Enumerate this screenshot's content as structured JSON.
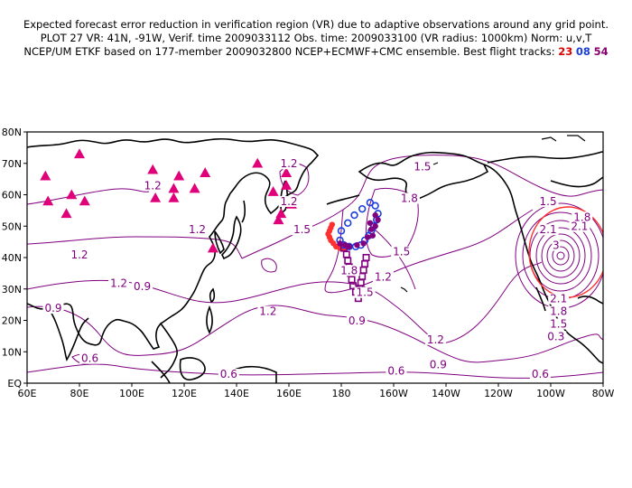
{
  "header": {
    "line1": "Expected forecast error reduction in verification region (VR) due to adaptive observations around any grid point.",
    "line2": "PLOT 27 VR: 41N, -91W, Verif. time 2009033112 Obs. time: 2009033100 (VR radius: 1000km) Norm: u,v,T",
    "line3_text": "NCEP/UM ETKF based on 177-member 2009032800 NCEP+ECMWF+CMC ensemble. Best flight tracks:",
    "track_ids": [
      "23",
      "08",
      "54"
    ]
  },
  "map": {
    "lon_range": [
      60,
      280
    ],
    "lat_range": [
      0,
      80
    ],
    "lon_ticks": [
      "60E",
      "80E",
      "100E",
      "120E",
      "140E",
      "160E",
      "180",
      "160W",
      "140W",
      "120W",
      "100W",
      "80W"
    ],
    "lat_ticks": [
      "EQ",
      "10N",
      "20N",
      "30N",
      "40N",
      "50N",
      "60N",
      "70N",
      "80N"
    ],
    "contour_color": "#800080",
    "verification_region": {
      "center_lat": 41,
      "center_lon": 269,
      "radius_km": 1000,
      "color": "#ff3030"
    },
    "contour_labels": [
      {
        "text": "1.2",
        "lon": 108,
        "lat": 62
      },
      {
        "text": "1.2",
        "lon": 125,
        "lat": 48
      },
      {
        "text": "1.2",
        "lon": 160,
        "lat": 69
      },
      {
        "text": "1.2",
        "lon": 160,
        "lat": 57
      },
      {
        "text": "1.2",
        "lon": 80,
        "lat": 40
      },
      {
        "text": "1.2",
        "lon": 95,
        "lat": 31
      },
      {
        "text": "1.2",
        "lon": 152,
        "lat": 22
      },
      {
        "text": "1.2",
        "lon": 196,
        "lat": 33
      },
      {
        "text": "1.2",
        "lon": 216,
        "lat": 13
      },
      {
        "text": "0.9",
        "lon": 104,
        "lat": 30
      },
      {
        "text": "0.9",
        "lon": 70,
        "lat": 23
      },
      {
        "text": "0.9",
        "lon": 186,
        "lat": 19
      },
      {
        "text": "0.9",
        "lon": 217,
        "lat": 5
      },
      {
        "text": "0.6",
        "lon": 84,
        "lat": 7
      },
      {
        "text": "0.6",
        "lon": 137,
        "lat": 2
      },
      {
        "text": "0.6",
        "lon": 201,
        "lat": 3
      },
      {
        "text": "0.6",
        "lon": 256,
        "lat": 2
      },
      {
        "text": "0.3",
        "lon": 262,
        "lat": 14
      },
      {
        "text": "1.5",
        "lon": 165,
        "lat": 48
      },
      {
        "text": "1.5",
        "lon": 189,
        "lat": 28
      },
      {
        "text": "1.5",
        "lon": 203,
        "lat": 41
      },
      {
        "text": "1.5",
        "lon": 211,
        "lat": 68
      },
      {
        "text": "1.5",
        "lon": 259,
        "lat": 57
      },
      {
        "text": "1.8",
        "lon": 206,
        "lat": 58
      },
      {
        "text": "1.8",
        "lon": 183,
        "lat": 35
      },
      {
        "text": "1.8",
        "lon": 272,
        "lat": 52
      },
      {
        "text": "2.1",
        "lon": 259,
        "lat": 48
      },
      {
        "text": "2.1",
        "lon": 271,
        "lat": 49
      },
      {
        "text": "2.1",
        "lon": 263,
        "lat": 26
      },
      {
        "text": "1.8",
        "lon": 263,
        "lat": 22
      },
      {
        "text": "1.5",
        "lon": 263,
        "lat": 18
      },
      {
        "text": "3",
        "lon": 262,
        "lat": 43
      }
    ],
    "raob_triangles": [
      [
        67,
        66
      ],
      [
        68,
        58
      ],
      [
        75,
        54
      ],
      [
        77,
        60
      ],
      [
        80,
        73
      ],
      [
        82,
        58
      ],
      [
        108,
        68
      ],
      [
        109,
        63
      ],
      [
        109,
        59
      ],
      [
        116,
        59
      ],
      [
        116,
        62
      ],
      [
        118,
        66
      ],
      [
        124,
        62
      ],
      [
        128,
        67
      ],
      [
        131,
        43
      ],
      [
        148,
        70
      ],
      [
        154,
        61
      ],
      [
        156,
        52
      ],
      [
        157,
        54
      ],
      [
        159,
        63
      ],
      [
        159,
        67
      ],
      [
        161,
        57
      ]
    ]
  },
  "chart_data": {
    "type": "scatter",
    "title": "Expected forecast error reduction in verification region (VR) due to adaptive observations around any grid point.",
    "series": [
      {
        "name": "23",
        "color": "#ff3030",
        "marker": "filled-circle",
        "points": [
          [
            176.5,
            50.5
          ],
          [
            176,
            49.5
          ],
          [
            175.5,
            48.5
          ],
          [
            175,
            47.5
          ],
          [
            175.5,
            46.5
          ],
          [
            176,
            45.5
          ],
          [
            177,
            44.5
          ],
          [
            178,
            43.5
          ],
          [
            179.5,
            43
          ],
          [
            181,
            43
          ]
        ]
      },
      {
        "name": "08",
        "color": "#1a3de0",
        "marker": "open-circle",
        "points": [
          [
            180,
            48.5
          ],
          [
            182.5,
            51
          ],
          [
            185,
            53.5
          ],
          [
            188,
            55.5
          ],
          [
            191,
            57.5
          ],
          [
            193,
            56.5
          ],
          [
            194,
            54
          ],
          [
            193.5,
            52
          ],
          [
            192.5,
            50
          ],
          [
            191.5,
            48.5
          ],
          [
            190.5,
            47
          ],
          [
            189,
            45.5
          ],
          [
            187.5,
            44
          ],
          [
            185.5,
            43.5
          ],
          [
            183,
            43.5
          ],
          [
            181,
            44
          ],
          [
            179.5,
            45.5
          ]
        ]
      },
      {
        "name": "54",
        "color": "#800080",
        "marker": "filled-circle",
        "points": [
          [
            191,
            51
          ],
          [
            193,
            53.5
          ],
          [
            194,
            52
          ],
          [
            193,
            50
          ],
          [
            191.5,
            49
          ],
          [
            192,
            47
          ],
          [
            190,
            46.5
          ],
          [
            188.5,
            44.5
          ],
          [
            186,
            44
          ],
          [
            183,
            43.5
          ],
          [
            181.5,
            44
          ],
          [
            179.5,
            44.5
          ]
        ]
      },
      {
        "name": "54-track",
        "color": "#800080",
        "marker": "open-square",
        "points": [
          [
            181,
            43
          ],
          [
            182,
            41
          ],
          [
            182.5,
            39
          ],
          [
            183,
            37
          ],
          [
            183.5,
            35
          ],
          [
            184,
            33
          ],
          [
            184.5,
            31
          ],
          [
            185.5,
            29
          ],
          [
            186.5,
            27
          ],
          [
            187,
            30
          ],
          [
            187.5,
            32
          ],
          [
            188,
            34
          ],
          [
            188.5,
            36
          ],
          [
            189,
            38
          ],
          [
            189.5,
            40
          ]
        ]
      }
    ]
  }
}
